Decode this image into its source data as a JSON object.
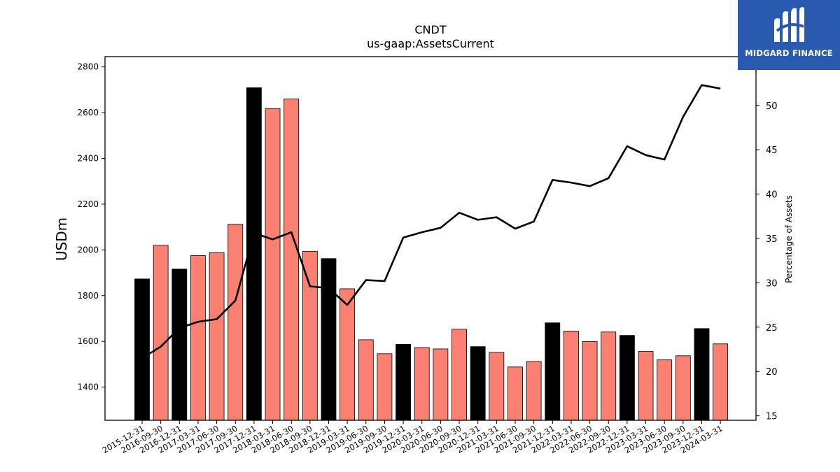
{
  "brand": {
    "name": "MIDGARD FINANCE",
    "bg_color": "#2a5ab0",
    "logo_icon": "midgard-m-logo-icon"
  },
  "chart_data": {
    "type": "bar",
    "title": "CNDT",
    "subtitle": "us-gaap:AssetsCurrent",
    "ylabel": "USDm",
    "y2label": "Percentage of Assets",
    "ylim": [
      1255,
      2845
    ],
    "y2lim": [
      14.5,
      55.5
    ],
    "yticks": [
      1400,
      1600,
      1800,
      2000,
      2200,
      2400,
      2600,
      2800
    ],
    "y2ticks": [
      15,
      20,
      25,
      30,
      35,
      40,
      45,
      50
    ],
    "categories": [
      "2015-12-31",
      "2016-09-30",
      "2016-12-31",
      "2017-03-31",
      "2017-06-30",
      "2017-09-30",
      "2017-12-31",
      "2018-03-31",
      "2018-06-30",
      "2018-09-30",
      "2018-12-31",
      "2019-03-31",
      "2019-06-30",
      "2019-09-30",
      "2019-12-31",
      "2020-03-31",
      "2020-06-30",
      "2020-09-30",
      "2020-12-31",
      "2021-03-31",
      "2021-06-30",
      "2021-09-30",
      "2021-12-31",
      "2022-03-31",
      "2022-06-30",
      "2022-09-30",
      "2022-12-31",
      "2023-03-31",
      "2023-06-30",
      "2023-09-30",
      "2023-12-31",
      "2024-03-31"
    ],
    "bar_values": [
      1873,
      2020,
      1916,
      1975,
      1988,
      2112,
      2709,
      2618,
      2660,
      1994,
      1962,
      1830,
      1607,
      1546,
      1587,
      1573,
      1567,
      1653,
      1577,
      1552,
      1488,
      1512,
      1681,
      1645,
      1599,
      1641,
      1626,
      1556,
      1519,
      1537,
      1656,
      1589
    ],
    "bar_is_fiscal_year_end": [
      true,
      false,
      true,
      false,
      false,
      false,
      true,
      false,
      false,
      false,
      true,
      false,
      false,
      false,
      true,
      false,
      false,
      false,
      true,
      false,
      false,
      false,
      true,
      false,
      false,
      false,
      true,
      false,
      false,
      false,
      true,
      false
    ],
    "bar_colors": {
      "year_end": "#000000",
      "quarter": "#fa8072"
    },
    "line_values": [
      21.5,
      22.8,
      24.9,
      25.6,
      25.9,
      28.0,
      35.6,
      34.9,
      35.7,
      29.6,
      29.4,
      27.5,
      30.3,
      30.2,
      35.1,
      35.7,
      36.2,
      37.9,
      37.1,
      37.4,
      36.1,
      36.9,
      41.6,
      41.3,
      40.9,
      41.8,
      45.4,
      44.4,
      43.9,
      48.7,
      52.3,
      51.9
    ],
    "line_color": "#000000"
  }
}
